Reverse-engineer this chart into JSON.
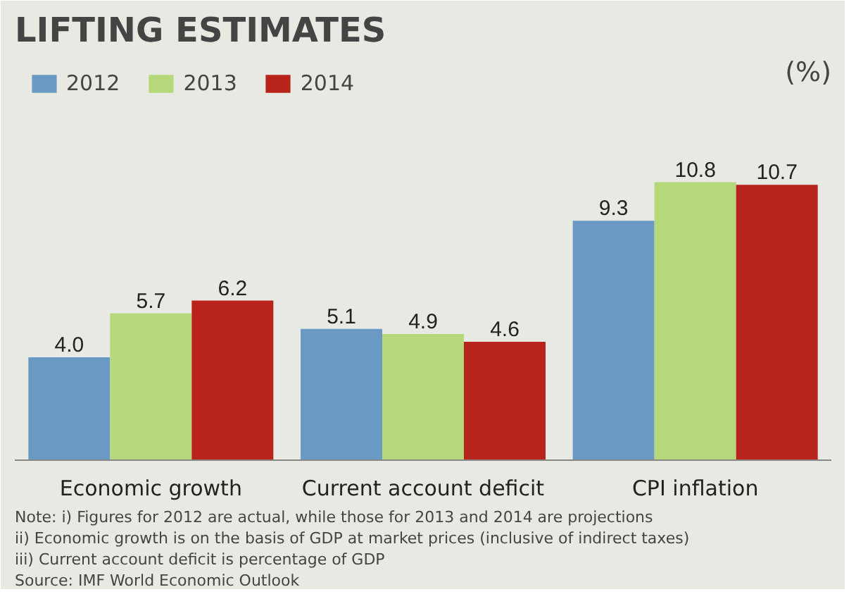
{
  "chart_data": {
    "type": "bar",
    "title": "LIFTING ESTIMATES",
    "ylabel": "(%)",
    "categories": [
      "Economic growth",
      "Current account deficit",
      "CPI inflation"
    ],
    "series": [
      {
        "name": "2012",
        "color": "#6a9ac4",
        "values": [
          4.0,
          5.1,
          9.3
        ],
        "value_labels": [
          "4.0",
          "5.1",
          "9.3"
        ]
      },
      {
        "name": "2013",
        "color": "#b5d97a",
        "values": [
          5.7,
          4.9,
          10.8
        ],
        "value_labels": [
          "5.7",
          "4.9",
          "10.8"
        ]
      },
      {
        "name": "2014",
        "color": "#b8241c",
        "values": [
          6.2,
          4.6,
          10.7
        ],
        "value_labels": [
          "6.2",
          "4.6",
          "10.7"
        ]
      }
    ],
    "legend": "top left",
    "annotations": [
      "Note: i) Figures for 2012 are actual, while those for 2013 and 2014 are projections",
      "ii) Economic growth is on the basis of GDP at market prices (inclusive of indirect taxes)",
      "iii) Current account deficit is percentage of GDP",
      "Source: IMF World Economic Outlook"
    ]
  }
}
